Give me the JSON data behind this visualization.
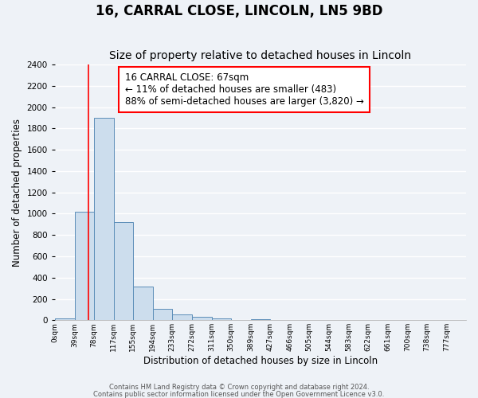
{
  "title": "16, CARRAL CLOSE, LINCOLN, LN5 9BD",
  "subtitle": "Size of property relative to detached houses in Lincoln",
  "xlabel": "Distribution of detached houses by size in Lincoln",
  "ylabel": "Number of detached properties",
  "bin_labels": [
    "0sqm",
    "39sqm",
    "78sqm",
    "117sqm",
    "155sqm",
    "194sqm",
    "233sqm",
    "272sqm",
    "311sqm",
    "350sqm",
    "389sqm",
    "427sqm",
    "466sqm",
    "505sqm",
    "544sqm",
    "583sqm",
    "622sqm",
    "661sqm",
    "700sqm",
    "738sqm",
    "777sqm"
  ],
  "bin_edges": [
    0,
    39,
    78,
    117,
    155,
    194,
    233,
    272,
    311,
    350,
    389,
    427,
    466,
    505,
    544,
    583,
    622,
    661,
    700,
    738,
    777,
    816
  ],
  "bar_heights": [
    20,
    1020,
    1900,
    920,
    315,
    105,
    55,
    35,
    20,
    0,
    10,
    0,
    0,
    0,
    0,
    0,
    0,
    0,
    0,
    0,
    0
  ],
  "bar_color": "#ccdded",
  "bar_edge_color": "#5b8db8",
  "red_line_x": 67,
  "ylim": [
    0,
    2400
  ],
  "yticks": [
    0,
    200,
    400,
    600,
    800,
    1000,
    1200,
    1400,
    1600,
    1800,
    2000,
    2200,
    2400
  ],
  "annotation_title": "16 CARRAL CLOSE: 67sqm",
  "annotation_line1": "← 11% of detached houses are smaller (483)",
  "annotation_line2": "88% of semi-detached houses are larger (3,820) →",
  "footer1": "Contains HM Land Registry data © Crown copyright and database right 2024.",
  "footer2": "Contains public sector information licensed under the Open Government Licence v3.0.",
  "background_color": "#eef2f7",
  "grid_color": "#ffffff",
  "title_fontsize": 12,
  "subtitle_fontsize": 10,
  "annotation_fontsize": 8.5
}
